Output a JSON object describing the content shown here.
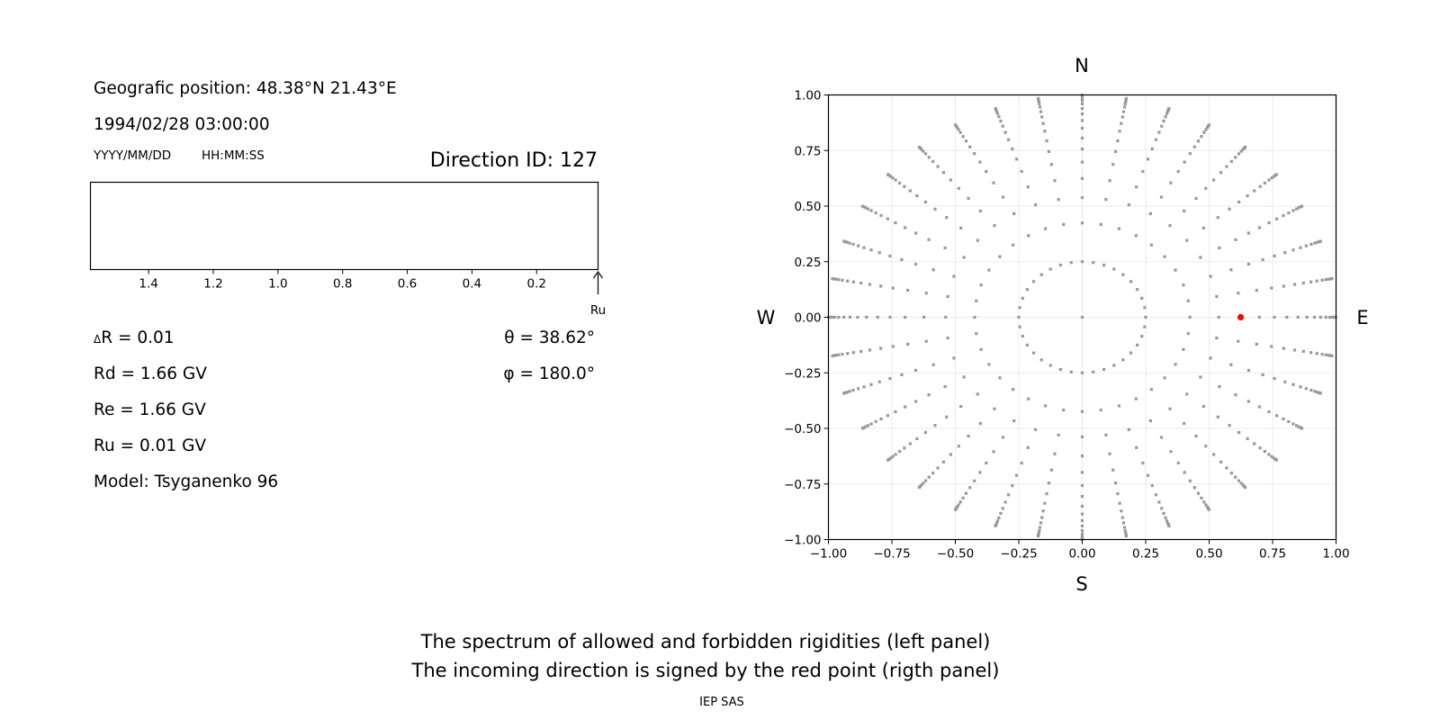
{
  "header": {
    "position": "Geografic position: 48.38°N 21.43°E",
    "datetime": "1994/02/28 03:00:00",
    "date_format": "YYYY/MM/DD",
    "time_format": "HH:MM:SS",
    "direction_id": "Direction ID: 127"
  },
  "params": {
    "delta_r": {
      "symbol": "Δ",
      "text": "R = 0.01"
    },
    "rd": "Rd = 1.66 GV",
    "re": "Re = 1.66 GV",
    "ru": "Ru = 0.01 GV",
    "model": "Model: Tsyganenko 96",
    "theta": "θ = 38.62°",
    "phi": "φ = 180.0°"
  },
  "chart_data": [
    {
      "type": "bar",
      "categories": [],
      "values": [],
      "xlim": [
        1.58,
        0.01
      ],
      "x_reversed": true,
      "xticks": [
        1.4,
        1.2,
        1.0,
        0.8,
        0.6,
        0.4,
        0.2
      ],
      "xtick_labels": [
        "1.4",
        "1.2",
        "1.0",
        "0.8",
        "0.6",
        "0.4",
        "0.2"
      ],
      "yticks": [],
      "annotation": {
        "label": "Ru",
        "x": 0.01,
        "arrow": "up"
      },
      "grid": false
    },
    {
      "type": "scatter",
      "xlim": [
        -1,
        1
      ],
      "ylim": [
        -1,
        1
      ],
      "xticks": [
        -1,
        -0.75,
        -0.5,
        -0.25,
        0,
        0.25,
        0.5,
        0.75,
        1
      ],
      "xtick_labels": [
        "−1.00",
        "−0.75",
        "−0.50",
        "−0.25",
        "0.00",
        "0.25",
        "0.50",
        "0.75",
        "1.00"
      ],
      "yticks": [
        -1,
        -0.75,
        -0.5,
        -0.25,
        0,
        0.25,
        0.5,
        0.75,
        1
      ],
      "ytick_labels": [
        "−1.00",
        "−0.75",
        "−0.50",
        "−0.25",
        "0.00",
        "0.25",
        "0.50",
        "0.75",
        "1.00"
      ],
      "grid": true,
      "cardinals": {
        "north": "N",
        "south": "S",
        "west": "W",
        "east": "E"
      },
      "direction_grid": {
        "azimuths_deg_step": 10,
        "radii": [
          0,
          0.25,
          0.424,
          0.538,
          0.624,
          0.698,
          0.757,
          0.806,
          0.85,
          0.885,
          0.915,
          0.939,
          0.96,
          0.975,
          0.986,
          0.994,
          0.999
        ],
        "color": "#999999"
      },
      "highlight": {
        "x": 0.624,
        "y": 0.0,
        "color": "#ff0000"
      }
    }
  ],
  "footer": {
    "line1": "The spectrum of allowed and forbidden rigidities (left panel)",
    "line2": "The incoming direction is signed by the red point (rigth panel)",
    "credit": "IEP SAS"
  }
}
